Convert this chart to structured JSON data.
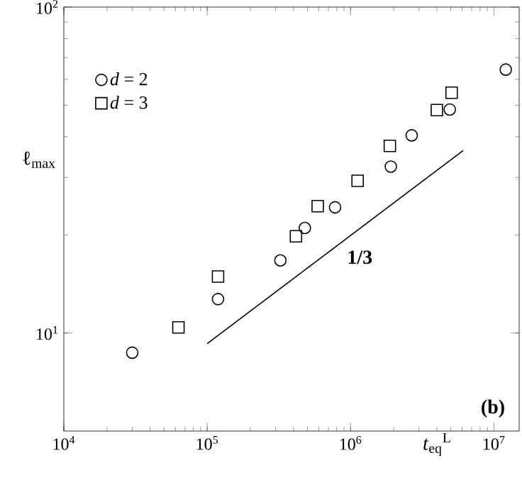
{
  "chart_data": {
    "type": "scatter",
    "xlabel": "*t*$_{eq}$$^{L}$",
    "ylabel": "ℓ$_{max}$",
    "log": "xy",
    "xlim": [
      10000,
      15000000
    ],
    "ylim": [
      5,
      100
    ],
    "xticks": [
      {
        "value": 10000,
        "label": "10$^{4}$"
      },
      {
        "value": 100000,
        "label": "10$^{5}$"
      },
      {
        "value": 1000000,
        "label": "10$^{6}$"
      },
      {
        "value": 10000000,
        "label": "10$^{7}$"
      }
    ],
    "yticks": [
      {
        "value": 10,
        "label": "10$^{1}$"
      },
      {
        "value": 100,
        "label": "10$^{2}$"
      }
    ],
    "legend": "top left",
    "grid": false,
    "series": [
      {
        "name": "*d* = 2",
        "color": "#000000",
        "marker": "circle",
        "x": [
          30000,
          119000,
          324000,
          480000,
          780000,
          1910000,
          2670000,
          4920000,
          12100000
        ],
        "values": [
          8.7,
          12.7,
          16.7,
          21.0,
          24.3,
          32.4,
          40.4,
          48.5,
          64.3
        ]
      },
      {
        "name": "*d* = 3",
        "color": "#000000",
        "marker": "square",
        "x": [
          63000,
          119000,
          416000,
          590000,
          1120000,
          1880000,
          4000000,
          5070000
        ],
        "values": [
          10.4,
          14.9,
          19.8,
          24.5,
          29.3,
          37.5,
          48.3,
          54.6
        ]
      },
      {
        "type": "line",
        "color": "#000000",
        "marker": "none",
        "line_style": "solid",
        "x": [
          100000,
          6100000
        ],
        "values": [
          9.28,
          36.3
        ]
      }
    ],
    "annotations": [
      "1/3",
      "(b)"
    ]
  }
}
